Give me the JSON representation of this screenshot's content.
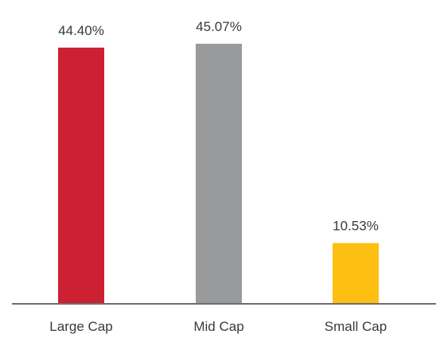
{
  "chart_data": {
    "type": "bar",
    "categories": [
      "Large Cap",
      "Mid Cap",
      "Small Cap"
    ],
    "values": [
      44.4,
      45.07,
      10.53
    ],
    "value_labels": [
      "44.40%",
      "45.07%",
      "10.53%"
    ],
    "colors": [
      "#cc2033",
      "#999a9c",
      "#fdbf12"
    ],
    "axis_color": "#6e6e6e",
    "title": "",
    "xlabel": "",
    "ylabel": "",
    "ylim": [
      0,
      45.07
    ],
    "grid": false,
    "legend": "none"
  }
}
